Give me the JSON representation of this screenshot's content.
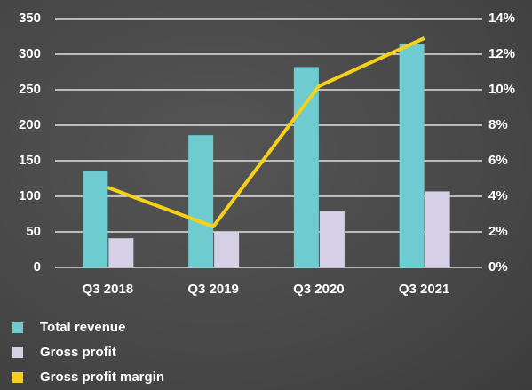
{
  "chart_data": {
    "type": "bar",
    "categories": [
      "Q3 2018",
      "Q3 2019",
      "Q3 2020",
      "Q3 2021"
    ],
    "series": [
      {
        "name": "Total revenue",
        "color": "#6ecbd0",
        "type": "bar",
        "values": [
          136,
          186,
          282,
          315
        ]
      },
      {
        "name": "Gross profit",
        "color": "#d6d0e6",
        "type": "bar",
        "values": [
          41,
          50,
          80,
          107
        ]
      },
      {
        "name": "Gross profit margin",
        "color": "#f7d117",
        "type": "line",
        "axis": "y2",
        "values": [
          4.5,
          2.3,
          10.2,
          12.9
        ]
      }
    ],
    "ylim": [
      0,
      350
    ],
    "yticks": [
      0,
      50,
      100,
      150,
      200,
      250,
      300,
      350
    ],
    "y2lim": [
      0,
      14
    ],
    "y2ticks": [
      {
        "value": 0,
        "label": "0%"
      },
      {
        "value": 2,
        "label": "2%"
      },
      {
        "value": 4,
        "label": "4%"
      },
      {
        "value": 6,
        "label": "6%"
      },
      {
        "value": 8,
        "label": "8%"
      },
      {
        "value": 10,
        "label": "10%"
      },
      {
        "value": 12,
        "label": "12%"
      },
      {
        "value": 14,
        "label": "14%"
      }
    ],
    "grid": true
  }
}
